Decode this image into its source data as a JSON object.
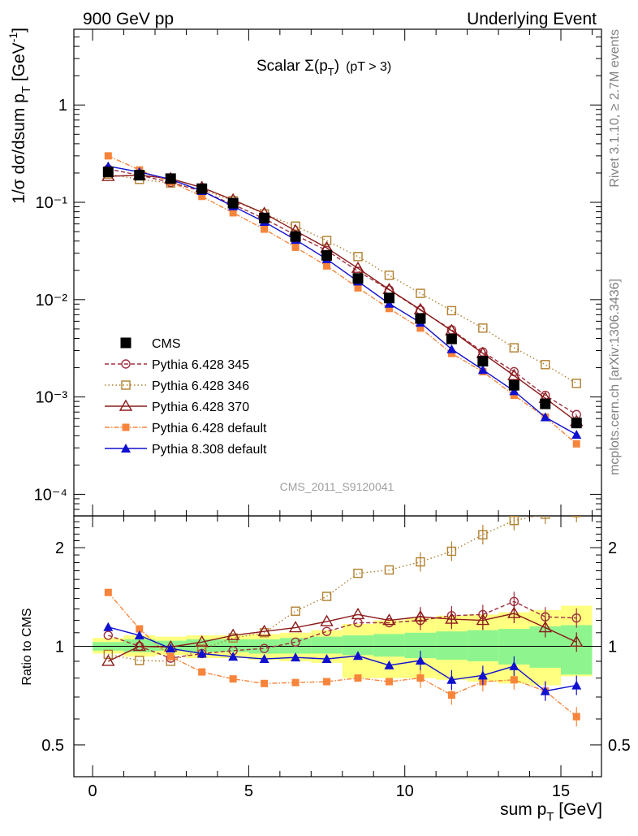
{
  "header": {
    "left": "900 GeV pp",
    "right": "Underlying Event"
  },
  "side_labels": {
    "rivet": "Rivet 3.1.10, ≥ 2.7M events",
    "mcplots": "mcplots.cern.ch [arXiv:1306.3436]"
  },
  "colors": {
    "cms": "#000000",
    "p345": "#a03040",
    "p346": "#b08030",
    "p370": "#8b1a1a",
    "p6def": "#f7843b",
    "p8": "#1010d0",
    "band_inner": "#8ef58e",
    "band_outer": "#ffff80"
  },
  "chart_data": [
    {
      "type": "scatter",
      "title": "Scalar Σ(p_T) (pT > 3)",
      "title_parts": {
        "main": "Scalar Σ(p",
        "sub": "T",
        "close": ")",
        "cut": "(pT >  3)"
      },
      "watermark": "CMS_2011_S9120041",
      "ylabel": "1/σ dσ/dsum p_T [GeV^-1]",
      "ylabel_parts": {
        "main": "1/σ dσ/dsum p",
        "sub": "T",
        "unit": " [GeV",
        "sup": "-1",
        "close": "]"
      },
      "yscale": "log",
      "ylim": [
        6e-05,
        6
      ],
      "xlim": [
        -0.6,
        16.3
      ],
      "ytick_labels": [
        "10⁻⁴",
        "10⁻³",
        "10⁻²",
        "10⁻¹",
        "1"
      ],
      "ytick_values": [
        0.0001,
        0.001,
        0.01,
        0.1,
        1
      ],
      "legend_position": "left",
      "x": [
        0.5,
        1.5,
        2.5,
        3.5,
        4.5,
        5.5,
        6.5,
        7.5,
        8.5,
        9.5,
        10.5,
        11.5,
        12.5,
        13.5,
        14.5,
        15.5
      ],
      "series": [
        {
          "key": "cms",
          "name": "CMS",
          "marker": "square-filled",
          "values": [
            0.205,
            0.19,
            0.175,
            0.138,
            0.098,
            0.069,
            0.0445,
            0.0285,
            0.0165,
            0.0104,
            0.0064,
            0.00395,
            0.00233,
            0.00132,
            0.00085,
            0.00054
          ]
        },
        {
          "key": "p345",
          "name": "Pythia 6.428 345",
          "marker": "circle-open",
          "dash": "5,3",
          "values": [
            0.22,
            0.19,
            0.16,
            0.13,
            0.095,
            0.068,
            0.046,
            0.032,
            0.0196,
            0.0126,
            0.0078,
            0.0049,
            0.0029,
            0.00182,
            0.00104,
            0.00066
          ]
        },
        {
          "key": "p346",
          "name": "Pythia 6.428 346",
          "marker": "square-open",
          "dash": "1.5,3",
          "values": [
            0.195,
            0.172,
            0.158,
            0.135,
            0.104,
            0.076,
            0.057,
            0.0405,
            0.0277,
            0.0178,
            0.0116,
            0.0077,
            0.0051,
            0.0032,
            0.00215,
            0.00138
          ]
        },
        {
          "key": "p370",
          "name": "Pythia 6.428 370",
          "marker": "triangle-open",
          "dash": "",
          "values": [
            0.185,
            0.19,
            0.175,
            0.142,
            0.106,
            0.077,
            0.051,
            0.034,
            0.021,
            0.0127,
            0.0079,
            0.0048,
            0.0028,
            0.00166,
            0.00097,
            0.00056
          ]
        },
        {
          "key": "p6def",
          "name": "Pythia 6.428 default",
          "marker": "square-filled-small",
          "dash": "6,2,1.5,2",
          "values": [
            0.3,
            0.215,
            0.162,
            0.115,
            0.078,
            0.053,
            0.0345,
            0.0222,
            0.0132,
            0.0081,
            0.0051,
            0.0028,
            0.00182,
            0.00104,
            0.00062,
            0.00033
          ]
        },
        {
          "key": "p8",
          "name": "Pythia 8.308 default",
          "marker": "triangle-filled",
          "dash": "",
          "values": [
            0.235,
            0.205,
            0.172,
            0.131,
            0.091,
            0.063,
            0.0412,
            0.0261,
            0.0154,
            0.0091,
            0.0058,
            0.0031,
            0.0019,
            0.00115,
            0.00062,
            0.00041
          ]
        }
      ]
    },
    {
      "type": "scatter",
      "xlabel": "sum p_T [GeV]",
      "xlabel_parts": {
        "main": "sum p",
        "sub": "T",
        "unit": " [GeV]"
      },
      "ylabel": "Ratio to CMS",
      "yscale": "log",
      "ylim": [
        0.4,
        2.5
      ],
      "xlim": [
        -0.6,
        16.3
      ],
      "ytick_labels": [
        "0.5",
        "1",
        "2"
      ],
      "ytick_values": [
        0.5,
        1,
        2
      ],
      "xtick_labels": [
        "0",
        "5",
        "10",
        "15"
      ],
      "xtick_values": [
        0,
        5,
        10,
        15
      ],
      "x": [
        0.5,
        1.5,
        2.5,
        3.5,
        4.5,
        5.5,
        6.5,
        7.5,
        8.5,
        9.5,
        10.5,
        11.5,
        12.5,
        13.5,
        14.5,
        15.5
      ],
      "band_edges": [
        0,
        1,
        2,
        3,
        4,
        5,
        6,
        7,
        8,
        9,
        10,
        11,
        12,
        13,
        14,
        15,
        16
      ],
      "band_inner": [
        [
          0.97,
          1.03
        ],
        [
          0.96,
          1.05
        ],
        [
          0.97,
          1.04
        ],
        [
          0.96,
          1.05
        ],
        [
          0.96,
          1.05
        ],
        [
          0.95,
          1.05
        ],
        [
          0.95,
          1.06
        ],
        [
          0.95,
          1.07
        ],
        [
          0.94,
          1.08
        ],
        [
          0.93,
          1.09
        ],
        [
          0.92,
          1.1
        ],
        [
          0.91,
          1.11
        ],
        [
          0.9,
          1.12
        ],
        [
          0.88,
          1.13
        ],
        [
          0.86,
          1.15
        ],
        [
          0.82,
          1.16
        ]
      ],
      "band_outer": [
        [
          0.95,
          1.06
        ],
        [
          0.93,
          1.08
        ],
        [
          0.94,
          1.07
        ],
        [
          0.92,
          1.08
        ],
        [
          0.92,
          1.08
        ],
        [
          0.91,
          1.09
        ],
        [
          0.9,
          1.1
        ],
        [
          0.89,
          1.12
        ],
        [
          0.8,
          1.17
        ],
        [
          0.8,
          1.2
        ],
        [
          0.8,
          1.22
        ],
        [
          0.79,
          1.24
        ],
        [
          0.78,
          1.25
        ],
        [
          0.77,
          1.27
        ],
        [
          0.76,
          1.29
        ],
        [
          0.81,
          1.33
        ]
      ],
      "series": [
        {
          "key": "p345",
          "name": "Pythia 6.428 345",
          "values": [
            1.08,
            1.0,
            0.92,
            0.95,
            0.97,
            0.985,
            1.03,
            1.11,
            1.18,
            1.18,
            1.2,
            1.24,
            1.25,
            1.37,
            1.23,
            1.22
          ]
        },
        {
          "key": "p346",
          "name": "Pythia 6.428 346",
          "values": [
            0.945,
            0.905,
            0.9,
            0.98,
            1.06,
            1.1,
            1.28,
            1.42,
            1.67,
            1.71,
            1.81,
            1.95,
            2.19,
            2.42,
            2.53,
            2.56
          ]
        },
        {
          "key": "p370",
          "name": "Pythia 6.428 370",
          "values": [
            0.9,
            1.0,
            0.995,
            1.03,
            1.08,
            1.11,
            1.14,
            1.19,
            1.25,
            1.2,
            1.23,
            1.21,
            1.2,
            1.26,
            1.14,
            1.03
          ]
        },
        {
          "key": "p6def",
          "name": "Pythia 6.428 default",
          "values": [
            1.46,
            1.13,
            0.93,
            0.835,
            0.795,
            0.77,
            0.775,
            0.78,
            0.8,
            0.78,
            0.8,
            0.71,
            0.78,
            0.79,
            0.73,
            0.61
          ]
        },
        {
          "key": "p8",
          "name": "Pythia 8.308 default",
          "values": [
            1.145,
            1.08,
            0.985,
            0.95,
            0.93,
            0.915,
            0.925,
            0.915,
            0.935,
            0.875,
            0.905,
            0.79,
            0.815,
            0.87,
            0.73,
            0.76
          ]
        }
      ]
    }
  ]
}
